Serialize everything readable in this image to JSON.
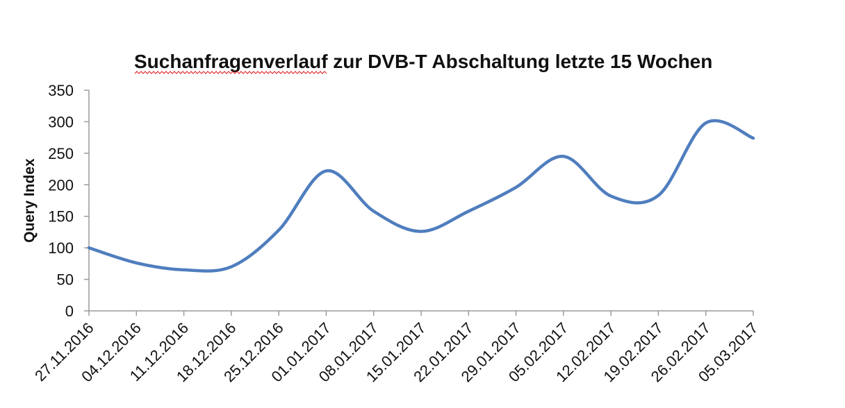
{
  "chart_data": {
    "type": "line",
    "title": "Suchanfragenverlauf zur DVB-T Abschaltung letzte 15 Wochen",
    "xlabel": "",
    "ylabel": "Query Index",
    "ylim": [
      0,
      350
    ],
    "yticks": [
      0,
      50,
      100,
      150,
      200,
      250,
      300,
      350
    ],
    "grid": false,
    "legend": "none",
    "categories": [
      "27.11.2016",
      "04.12.2016",
      "11.12.2016",
      "18.12.2016",
      "25.12.2016",
      "01.01.2017",
      "08.01.2017",
      "15.01.2017",
      "22.01.2017",
      "29.01.2017",
      "05.02.2017",
      "12.02.2017",
      "19.02.2017",
      "26.02.2017",
      "05.03.2017"
    ],
    "series": [
      {
        "name": "Query Index",
        "color": "#4f7ebe",
        "values": [
          100,
          76,
          65,
          70,
          128,
          222,
          158,
          126,
          158,
          196,
          245,
          182,
          183,
          298,
          274
        ]
      }
    ]
  }
}
